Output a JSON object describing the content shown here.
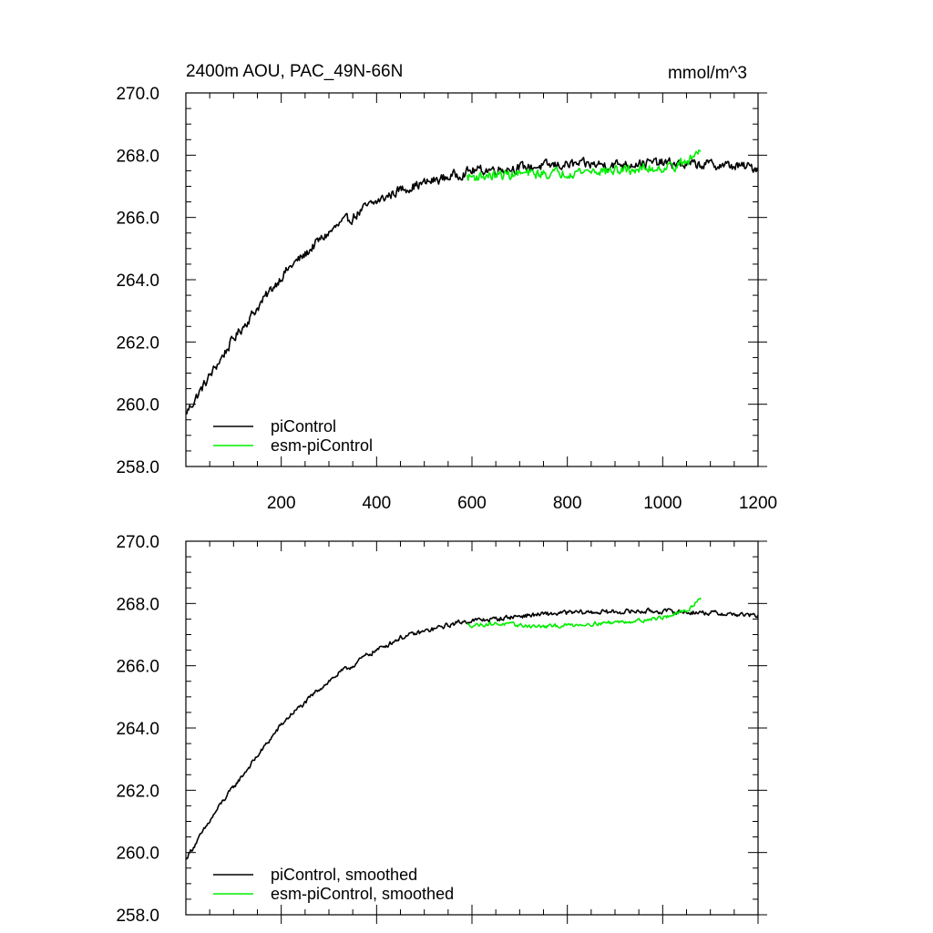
{
  "figure": {
    "title_left": "2400m AOU, PAC_49N-66N",
    "title_right": "mmol/m^3"
  },
  "colors": {
    "picontrol": "#000000",
    "esm_picontrol": "#00ee00"
  },
  "chart_data": [
    {
      "type": "line",
      "title": "2400m AOU, PAC_49N-66N",
      "units": "mmol/m^3",
      "xlim": [
        0,
        1200
      ],
      "ylim": [
        258,
        270
      ],
      "x_ticks": [
        200,
        400,
        600,
        800,
        1000,
        1200
      ],
      "x_tick_labels": [
        "200",
        "400",
        "600",
        "800",
        "1000",
        "1200"
      ],
      "y_ticks": [
        258,
        260,
        262,
        264,
        266,
        268,
        270
      ],
      "y_tick_labels": [
        "258.0",
        "260.0",
        "262.0",
        "264.0",
        "266.0",
        "268.0",
        "270.0"
      ],
      "legend_position": "bottom-left",
      "series": [
        {
          "name": "piControl",
          "color": "#000000",
          "x": [
            0,
            25,
            50,
            75,
            100,
            125,
            150,
            175,
            200,
            225,
            250,
            275,
            300,
            325,
            350,
            375,
            400,
            425,
            450,
            475,
            500,
            525,
            550,
            575,
            600,
            650,
            700,
            750,
            800,
            850,
            900,
            950,
            1000,
            1050,
            1100,
            1150,
            1200
          ],
          "values": [
            259.7,
            260.3,
            260.9,
            261.5,
            262.1,
            262.6,
            263.1,
            263.6,
            264.1,
            264.5,
            264.8,
            265.2,
            265.5,
            265.8,
            266.0,
            266.3,
            266.5,
            266.7,
            266.9,
            267.0,
            267.1,
            267.2,
            267.3,
            267.4,
            267.5,
            267.55,
            267.6,
            267.65,
            267.7,
            267.7,
            267.7,
            267.75,
            267.75,
            267.7,
            267.7,
            267.65,
            267.6
          ],
          "noise_amplitude": 0.25
        },
        {
          "name": "esm-piControl",
          "color": "#00ee00",
          "x": [
            590,
            650,
            700,
            750,
            800,
            850,
            900,
            950,
            1000,
            1050,
            1080
          ],
          "values": [
            267.3,
            267.35,
            267.4,
            267.4,
            267.45,
            267.5,
            267.5,
            267.55,
            267.6,
            267.75,
            268.2
          ],
          "noise_amplitude": 0.25
        }
      ]
    },
    {
      "type": "line",
      "title": "",
      "xlim": [
        0,
        1200
      ],
      "ylim": [
        258,
        270
      ],
      "x_ticks": [
        200,
        400,
        600,
        800,
        1000,
        1200
      ],
      "y_ticks": [
        258,
        260,
        262,
        264,
        266,
        268,
        270
      ],
      "y_tick_labels": [
        "258.0",
        "260.0",
        "262.0",
        "264.0",
        "266.0",
        "268.0",
        "270.0"
      ],
      "legend_position": "bottom-left",
      "series": [
        {
          "name": "piControl, smoothed",
          "color": "#000000",
          "x": [
            0,
            25,
            50,
            75,
            100,
            125,
            150,
            175,
            200,
            225,
            250,
            275,
            300,
            325,
            350,
            375,
            400,
            425,
            450,
            475,
            500,
            525,
            550,
            575,
            600,
            650,
            700,
            750,
            800,
            850,
            900,
            950,
            1000,
            1050,
            1100,
            1150,
            1200
          ],
          "values": [
            259.8,
            260.4,
            261.0,
            261.6,
            262.1,
            262.6,
            263.1,
            263.6,
            264.1,
            264.5,
            264.8,
            265.2,
            265.5,
            265.8,
            266.0,
            266.3,
            266.5,
            266.7,
            266.9,
            267.0,
            267.1,
            267.2,
            267.3,
            267.4,
            267.45,
            267.5,
            267.6,
            267.65,
            267.7,
            267.72,
            267.73,
            267.75,
            267.75,
            267.72,
            267.7,
            267.65,
            267.6
          ],
          "noise_amplitude": 0.12
        },
        {
          "name": "esm-piControl, smoothed",
          "color": "#00ee00",
          "x": [
            590,
            650,
            700,
            750,
            800,
            850,
            900,
            950,
            1000,
            1050,
            1080
          ],
          "values": [
            267.3,
            267.35,
            267.3,
            267.25,
            267.3,
            267.35,
            267.4,
            267.45,
            267.55,
            267.75,
            268.2
          ],
          "noise_amplitude": 0.1
        }
      ]
    }
  ]
}
